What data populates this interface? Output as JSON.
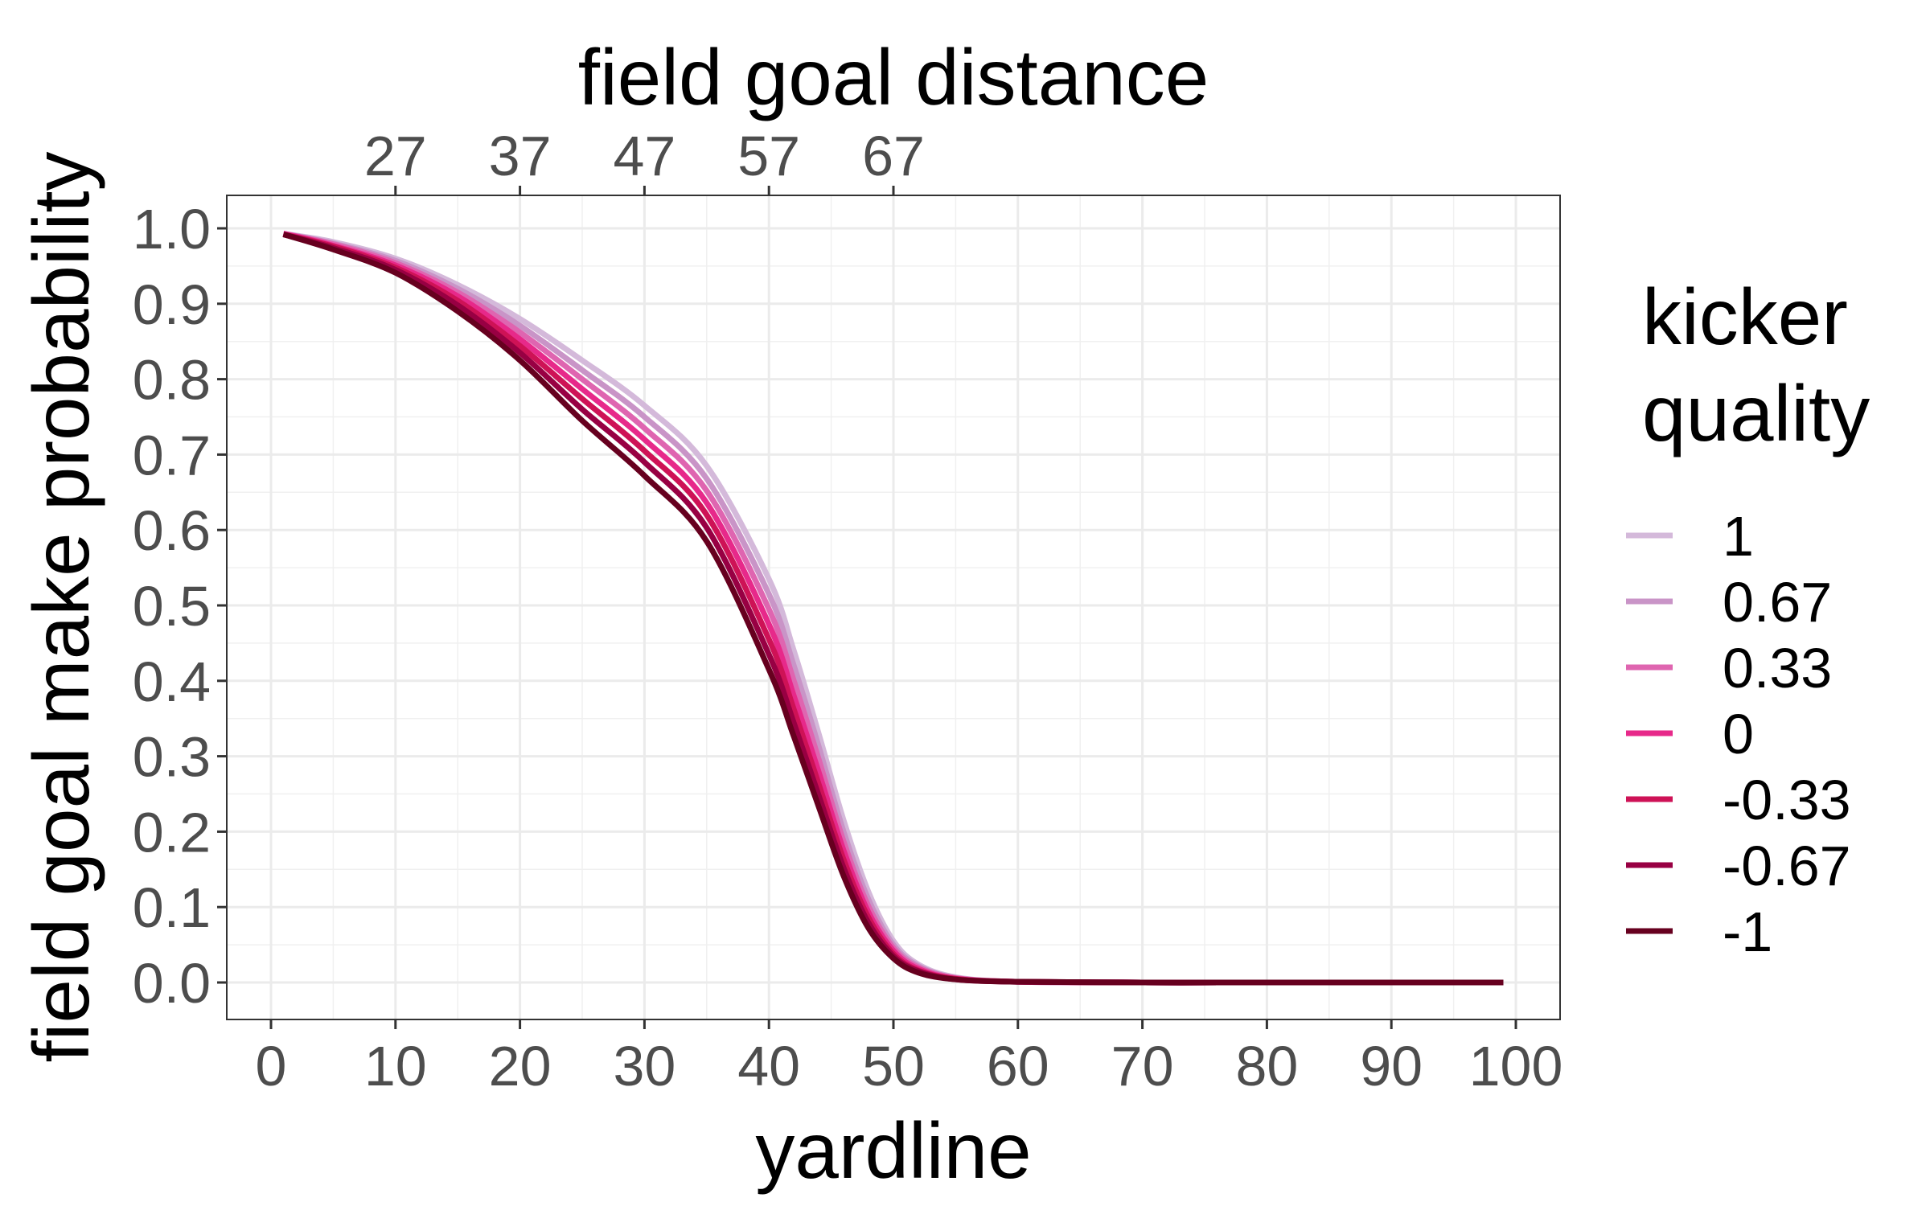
{
  "chart_data": {
    "type": "line",
    "title": "",
    "xlabel": "yardline",
    "ylabel": "field goal make probability",
    "secondary_xlabel": "field goal distance",
    "xlim": [
      0,
      100
    ],
    "ylim": [
      0,
      1
    ],
    "x_ticks": [
      "0",
      "10",
      "20",
      "30",
      "40",
      "50",
      "60",
      "70",
      "80",
      "90",
      "100"
    ],
    "y_ticks": [
      "0.0",
      "0.1",
      "0.2",
      "0.3",
      "0.4",
      "0.5",
      "0.6",
      "0.7",
      "0.8",
      "0.9",
      "1.0"
    ],
    "secondary_x_ticks": [
      "27",
      "37",
      "47",
      "57",
      "67"
    ],
    "secondary_x_tick_positions": [
      10,
      20,
      30,
      40,
      50
    ],
    "grid": true,
    "legend": {
      "title": "kicker\nquality",
      "position": "right"
    },
    "x": [
      1,
      5,
      10,
      15,
      20,
      25,
      30,
      35,
      40,
      42,
      44,
      46,
      48,
      50,
      52,
      55,
      60,
      70,
      80,
      90,
      99
    ],
    "series": [
      {
        "name": "1",
        "color": "#d4b9da",
        "values": [
          0.993,
          0.982,
          0.96,
          0.925,
          0.88,
          0.825,
          0.765,
          0.685,
          0.535,
          0.44,
          0.33,
          0.215,
          0.12,
          0.055,
          0.024,
          0.007,
          0.001,
          0,
          0,
          0,
          0
        ]
      },
      {
        "name": "0.67",
        "color": "#c994c7",
        "values": [
          0.993,
          0.98,
          0.957,
          0.92,
          0.871,
          0.812,
          0.75,
          0.668,
          0.515,
          0.42,
          0.313,
          0.2,
          0.11,
          0.05,
          0.022,
          0.006,
          0.001,
          0,
          0,
          0,
          0
        ]
      },
      {
        "name": "0.33",
        "color": "#df65b0",
        "values": [
          0.993,
          0.979,
          0.954,
          0.915,
          0.862,
          0.8,
          0.735,
          0.652,
          0.495,
          0.4,
          0.296,
          0.187,
          0.101,
          0.046,
          0.02,
          0.006,
          0.001,
          0,
          0,
          0,
          0
        ]
      },
      {
        "name": "0",
        "color": "#e7298a",
        "values": [
          0.993,
          0.977,
          0.951,
          0.91,
          0.853,
          0.787,
          0.72,
          0.636,
          0.475,
          0.38,
          0.279,
          0.175,
          0.093,
          0.042,
          0.018,
          0.005,
          0.001,
          0,
          0,
          0,
          0
        ]
      },
      {
        "name": "-0.33",
        "color": "#ce1256",
        "values": [
          0.992,
          0.976,
          0.948,
          0.904,
          0.844,
          0.774,
          0.705,
          0.62,
          0.455,
          0.362,
          0.263,
          0.163,
          0.086,
          0.038,
          0.016,
          0.005,
          0.001,
          0,
          0,
          0,
          0
        ]
      },
      {
        "name": "-0.67",
        "color": "#980043",
        "values": [
          0.992,
          0.974,
          0.945,
          0.898,
          0.835,
          0.76,
          0.69,
          0.603,
          0.435,
          0.344,
          0.248,
          0.152,
          0.079,
          0.035,
          0.015,
          0.004,
          0.001,
          0,
          0,
          0,
          0
        ]
      },
      {
        "name": "-1",
        "color": "#67001f",
        "values": [
          0.992,
          0.972,
          0.941,
          0.89,
          0.825,
          0.745,
          0.672,
          0.585,
          0.415,
          0.326,
          0.233,
          0.141,
          0.072,
          0.032,
          0.013,
          0.004,
          0.001,
          0,
          0,
          0,
          0
        ]
      }
    ]
  }
}
